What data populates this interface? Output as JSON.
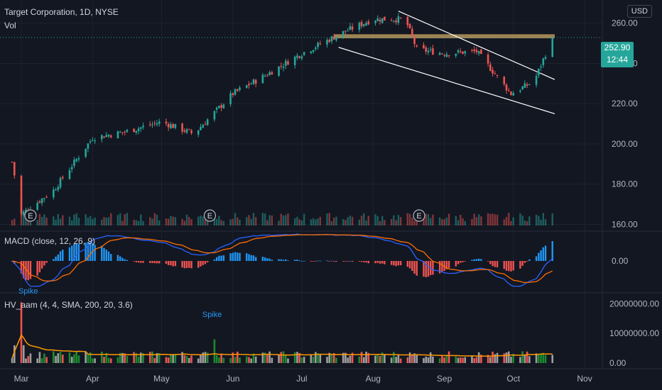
{
  "header": {
    "title": "Target Corporation, 1D, NYSE",
    "vol_label": "Vol",
    "currency": "USD",
    "last_price": "252.90",
    "countdown": "12:44"
  },
  "macd_label": "MACD (close, 12, 26, 9)",
  "hv_label": "HV_aam (4, 4, SMA, 200, 20, 3.6)",
  "spike_labels": [
    "Spike",
    "Spike"
  ],
  "earnings_marker": "E",
  "colors": {
    "background": "#131722",
    "up": "#26a69a",
    "down": "#ef5350",
    "macd_line": "#2962ff",
    "signal_line": "#ff6d00",
    "hist_up": "#2196f3",
    "hist_down": "#ef5350",
    "resistance_zone": "#b8975a",
    "channel": "#ffffff",
    "hv_sma": "#ff9800",
    "hv_neutral": "#9e9e9e",
    "hv_up": "#1b8a2e"
  },
  "chart_data": [
    {
      "type": "candlestick",
      "title": "Target Corporation, 1D, NYSE",
      "y_ticks": [
        "260.00",
        "240.00",
        "220.00",
        "200.00",
        "180.00",
        "160.00"
      ],
      "ylim": [
        157,
        268
      ],
      "x_ticks": [
        "Mar",
        "Apr",
        "May",
        "Jun",
        "Jul",
        "Aug",
        "Sep",
        "Oct",
        "Nov"
      ],
      "last_price": 252.9,
      "key_points": [
        {
          "date": "Feb 26",
          "close": 191
        },
        {
          "date": "Mar 1",
          "close": 165
        },
        {
          "date": "Mar 15",
          "close": 177
        },
        {
          "date": "Apr 1",
          "close": 203
        },
        {
          "date": "Apr 15",
          "close": 206
        },
        {
          "date": "May 1",
          "close": 211
        },
        {
          "date": "May 15",
          "close": 205
        },
        {
          "date": "Jun 1",
          "close": 225
        },
        {
          "date": "Jun 15",
          "close": 234
        },
        {
          "date": "Jul 1",
          "close": 245
        },
        {
          "date": "Jul 20",
          "close": 256
        },
        {
          "date": "Aug 1",
          "close": 262
        },
        {
          "date": "Aug 15",
          "close": 262
        },
        {
          "date": "Aug 20",
          "close": 247
        },
        {
          "date": "Sep 1",
          "close": 245
        },
        {
          "date": "Sep 15",
          "close": 246
        },
        {
          "date": "Sep 30",
          "close": 225
        },
        {
          "date": "Oct 10",
          "close": 231
        },
        {
          "date": "Oct 18",
          "close": 252.9
        }
      ],
      "annotations": [
        {
          "kind": "resistance_zone",
          "from": "Jul 15",
          "to": "Oct 19",
          "y_low": 252.5,
          "y_high": 254.5
        },
        {
          "kind": "channel_upper",
          "from": {
            "date": "Aug 12",
            "y": 266
          },
          "to": {
            "date": "Oct 19",
            "y": 232
          }
        },
        {
          "kind": "channel_lower",
          "from": {
            "date": "Jul 17",
            "y": 248
          },
          "to": {
            "date": "Oct 19",
            "y": 215
          }
        }
      ],
      "earnings": [
        "Mar 5",
        "May 22",
        "Aug 21"
      ],
      "volume": "relative bars along bottom of price pane"
    },
    {
      "type": "line",
      "title": "MACD (close, 12, 26, 9)",
      "y_ticks": [
        "0.00"
      ],
      "series": [
        "MACD",
        "Signal",
        "Histogram"
      ]
    },
    {
      "type": "bar",
      "title": "HV_aam (4, 4, SMA, 200, 20, 3.6)",
      "y_ticks": [
        "20000000.00",
        "10000000.00",
        "0.00"
      ],
      "ylim": [
        0,
        22000000
      ]
    }
  ]
}
